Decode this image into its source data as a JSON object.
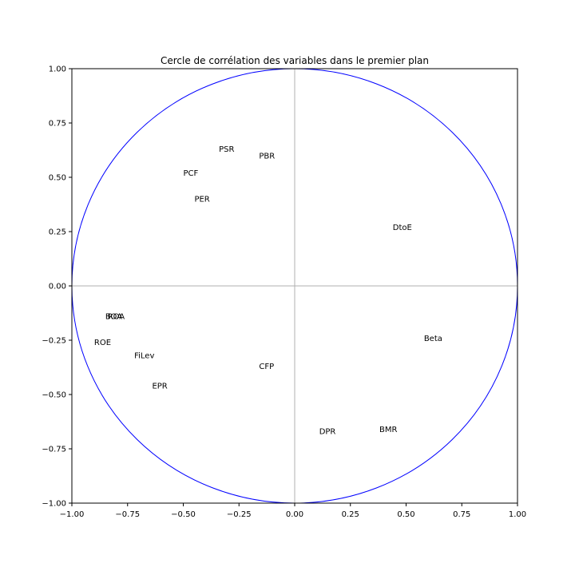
{
  "chart_data": {
    "type": "scatter",
    "title": "Cercle de corrélation des variables dans le premier plan",
    "xlabel": "",
    "ylabel": "",
    "xlim": [
      -1.0,
      1.0
    ],
    "ylim": [
      -1.0,
      1.0
    ],
    "xticks": [
      "−1.00",
      "−0.75",
      "−0.50",
      "−0.25",
      "0.00",
      "0.25",
      "0.50",
      "0.75",
      "1.00"
    ],
    "yticks": [
      "−1.00",
      "−0.75",
      "−0.50",
      "−0.25",
      "0.00",
      "0.25",
      "0.50",
      "0.75",
      "1.00"
    ],
    "grid": false,
    "reference_lines": "x=0 and y=0",
    "circle": {
      "radius": 1.0,
      "color": "#0000ff"
    },
    "axis_line_color": "#b0b0b0",
    "points": [
      {
        "label": "PSR",
        "x": -0.34,
        "y": 0.63
      },
      {
        "label": "PBR",
        "x": -0.16,
        "y": 0.6
      },
      {
        "label": "PCF",
        "x": -0.5,
        "y": 0.52
      },
      {
        "label": "PER",
        "x": -0.45,
        "y": 0.4
      },
      {
        "label": "DtoE",
        "x": 0.44,
        "y": 0.27
      },
      {
        "label": "BOA",
        "x": -0.85,
        "y": -0.14
      },
      {
        "label": "ROA",
        "x": -0.84,
        "y": -0.14
      },
      {
        "label": "ROE",
        "x": -0.9,
        "y": -0.26
      },
      {
        "label": "FiLev",
        "x": -0.72,
        "y": -0.32
      },
      {
        "label": "Beta",
        "x": 0.58,
        "y": -0.24
      },
      {
        "label": "CFP",
        "x": -0.16,
        "y": -0.37
      },
      {
        "label": "EPR",
        "x": -0.64,
        "y": -0.46
      },
      {
        "label": "DPR",
        "x": 0.11,
        "y": -0.67
      },
      {
        "label": "BMR",
        "x": 0.38,
        "y": -0.66
      }
    ]
  }
}
